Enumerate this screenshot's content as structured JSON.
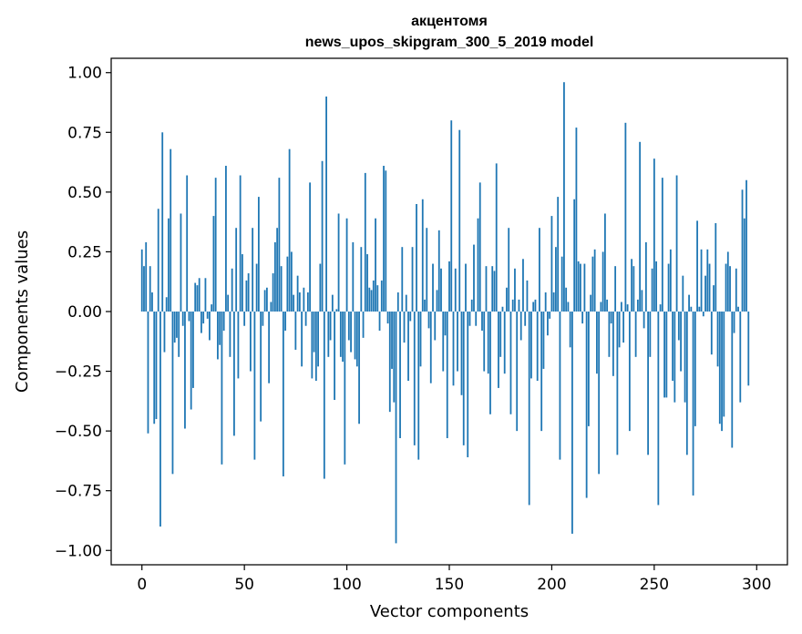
{
  "chart_data": {
    "type": "bar",
    "title": "акцентомя",
    "subtitle": "news_upos_skipgram_300_5_2019 model",
    "xlabel": "Vector components",
    "ylabel": "Components values",
    "xlim": [
      -15,
      315
    ],
    "ylim": [
      -1.06,
      1.06
    ],
    "xticks": [
      0,
      50,
      100,
      150,
      200,
      250,
      300
    ],
    "yticks": [
      -1.0,
      -0.75,
      -0.5,
      -0.25,
      0.0,
      0.25,
      0.5,
      0.75,
      1.0
    ],
    "ytick_labels": [
      "−1.00",
      "−0.75",
      "−0.50",
      "−0.25",
      "0.00",
      "0.25",
      "0.50",
      "0.75",
      "1.00"
    ],
    "grid": false,
    "bar_color": "#1f77b4",
    "values": [
      0.26,
      0.19,
      0.29,
      -0.51,
      0.19,
      0.08,
      -0.47,
      -0.45,
      0.43,
      -0.9,
      0.75,
      -0.17,
      0.06,
      0.39,
      0.68,
      -0.68,
      -0.13,
      -0.11,
      -0.19,
      0.41,
      -0.06,
      -0.49,
      0.57,
      -0.04,
      -0.41,
      -0.32,
      0.12,
      0.11,
      0.14,
      -0.09,
      -0.05,
      0.14,
      -0.03,
      -0.12,
      0.03,
      0.4,
      0.56,
      -0.2,
      -0.14,
      -0.64,
      -0.08,
      0.61,
      0.07,
      -0.19,
      0.18,
      -0.52,
      0.35,
      -0.28,
      0.57,
      0.24,
      -0.06,
      0.13,
      0.16,
      -0.25,
      0.35,
      -0.62,
      0.2,
      0.48,
      -0.46,
      -0.06,
      0.09,
      0.1,
      -0.3,
      0.04,
      0.16,
      0.29,
      0.35,
      0.56,
      0.19,
      -0.69,
      -0.08,
      0.23,
      0.68,
      0.25,
      0.07,
      -0.16,
      0.15,
      0.08,
      -0.23,
      0.1,
      -0.06,
      0.08,
      0.54,
      -0.28,
      -0.17,
      -0.29,
      -0.23,
      0.2,
      0.63,
      -0.7,
      0.9,
      -0.19,
      -0.12,
      0.07,
      -0.37,
      0.01,
      0.41,
      -0.19,
      -0.21,
      -0.64,
      0.39,
      -0.12,
      -0.17,
      0.29,
      -0.2,
      -0.23,
      -0.47,
      0.27,
      -0.11,
      0.58,
      0.24,
      0.1,
      0.09,
      0.13,
      0.39,
      0.11,
      -0.08,
      0.13,
      0.61,
      0.59,
      -0.05,
      -0.42,
      -0.24,
      -0.38,
      -0.97,
      0.08,
      -0.53,
      0.27,
      -0.13,
      0.07,
      -0.29,
      -0.04,
      0.27,
      -0.56,
      0.45,
      -0.62,
      -0.23,
      0.47,
      0.05,
      0.35,
      -0.07,
      -0.3,
      0.2,
      -0.12,
      0.09,
      0.34,
      0.18,
      -0.25,
      -0.1,
      -0.53,
      0.21,
      0.8,
      -0.31,
      0.18,
      -0.25,
      0.76,
      -0.35,
      -0.56,
      0.2,
      -0.61,
      -0.06,
      0.05,
      0.28,
      -0.06,
      0.39,
      0.54,
      -0.08,
      -0.25,
      0.19,
      -0.26,
      -0.43,
      0.19,
      0.17,
      0.62,
      -0.32,
      -0.19,
      0.02,
      -0.26,
      0.1,
      0.35,
      -0.43,
      0.05,
      0.18,
      -0.5,
      0.05,
      -0.12,
      0.22,
      -0.06,
      0.13,
      -0.81,
      -0.28,
      0.04,
      0.05,
      -0.29,
      0.35,
      -0.5,
      -0.24,
      0.08,
      -0.1,
      -0.03,
      0.4,
      0.08,
      0.27,
      0.48,
      -0.62,
      0.23,
      0.96,
      0.1,
      0.04,
      -0.15,
      -0.93,
      0.47,
      0.77,
      0.21,
      0.2,
      -0.05,
      0.2,
      -0.78,
      -0.48,
      0.07,
      0.23,
      0.26,
      -0.26,
      -0.68,
      0.04,
      0.25,
      0.41,
      0.05,
      -0.19,
      -0.05,
      -0.27,
      0.19,
      -0.6,
      -0.15,
      0.04,
      -0.13,
      0.79,
      0.03,
      -0.5,
      0.22,
      0.19,
      -0.19,
      0.05,
      0.71,
      0.09,
      -0.07,
      0.29,
      -0.6,
      -0.19,
      0.18,
      0.64,
      0.21,
      -0.81,
      0.03,
      0.56,
      -0.36,
      -0.36,
      0.2,
      0.26,
      -0.29,
      -0.38,
      0.57,
      -0.12,
      -0.25,
      0.15,
      -0.38,
      -0.6,
      0.07,
      0.02,
      -0.77,
      -0.48,
      0.38,
      0.02,
      0.26,
      -0.02,
      0.15,
      0.26,
      0.2,
      -0.18,
      0.11,
      0.37,
      -0.23,
      -0.47,
      -0.5,
      -0.44,
      0.2,
      0.25,
      0.19,
      -0.57,
      -0.09,
      0.18,
      0.02,
      -0.38,
      0.51,
      0.39,
      0.55,
      -0.31
    ]
  }
}
